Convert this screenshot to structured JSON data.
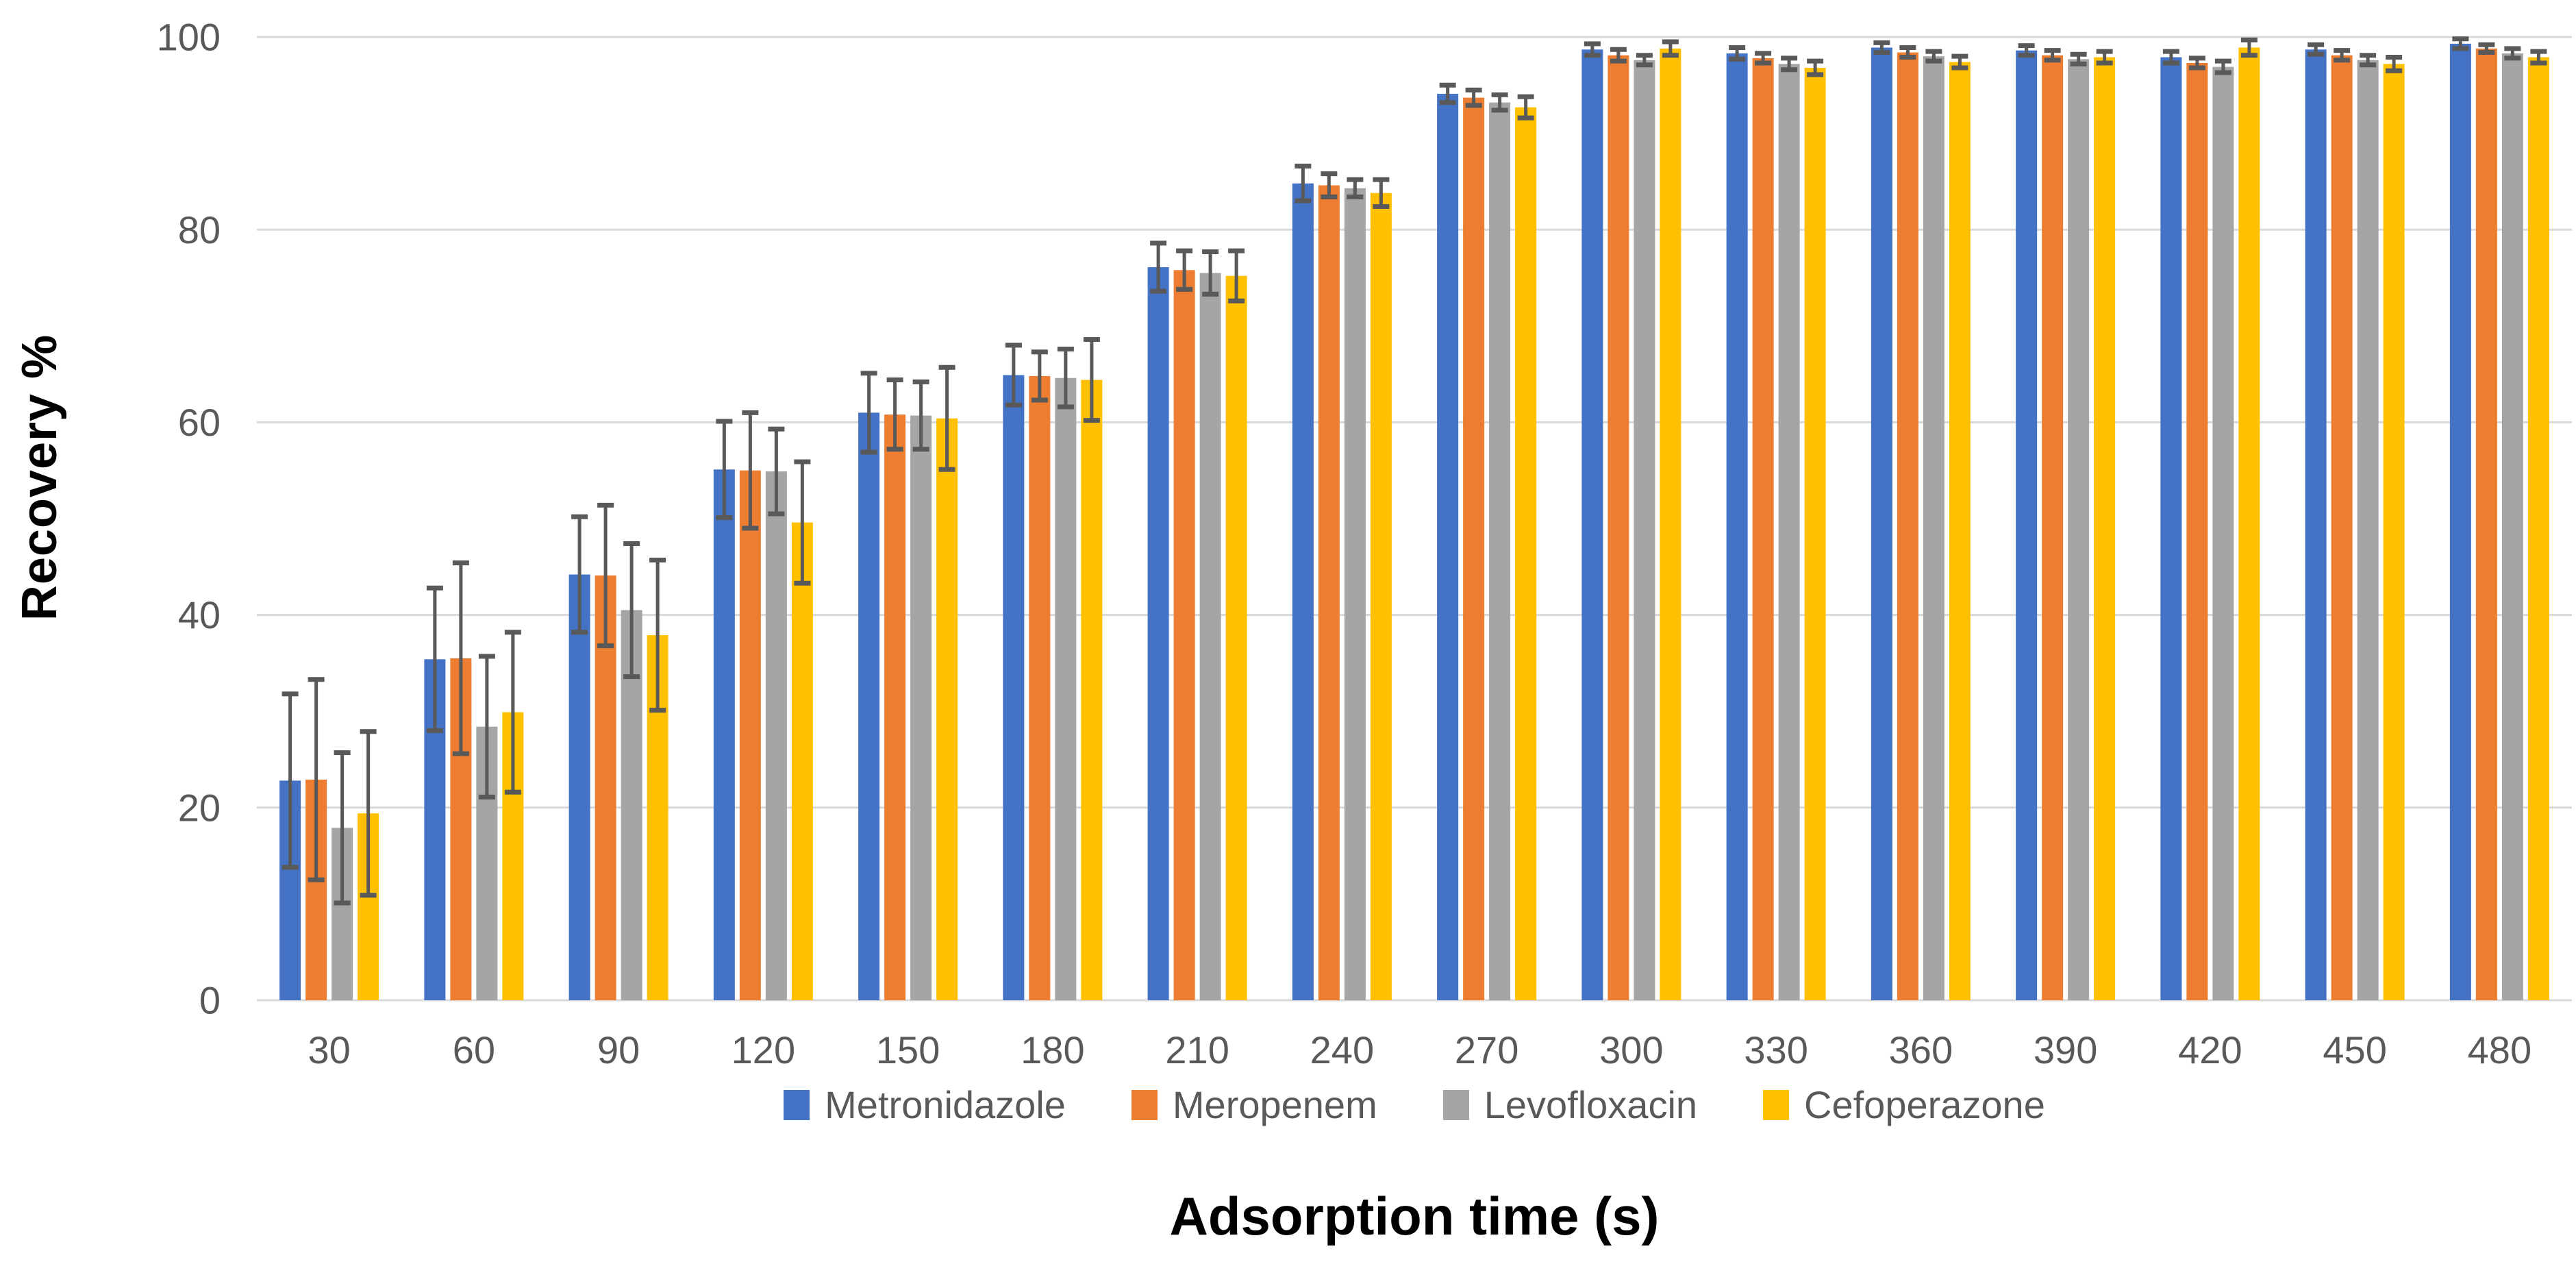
{
  "chart_data": {
    "type": "bar",
    "title": "",
    "xlabel": "Adsorption time (s)",
    "ylabel": "Recovery %",
    "categories": [
      "30",
      "60",
      "90",
      "120",
      "150",
      "180",
      "210",
      "240",
      "270",
      "300",
      "330",
      "360",
      "390",
      "420",
      "450",
      "480"
    ],
    "series": [
      {
        "name": "Metronidazole",
        "color": "#4472C4",
        "values": [
          22.8,
          35.4,
          44.2,
          55.1,
          61.0,
          64.9,
          76.1,
          84.8,
          94.1,
          98.7,
          98.3,
          98.9,
          98.6,
          97.9,
          98.7,
          99.3
        ],
        "errors": [
          9.0,
          7.4,
          6.0,
          5.0,
          4.1,
          3.1,
          2.5,
          1.8,
          0.9,
          0.6,
          0.6,
          0.5,
          0.5,
          0.6,
          0.5,
          0.5
        ]
      },
      {
        "name": "Meropenem",
        "color": "#ED7D31",
        "values": [
          22.9,
          35.5,
          44.1,
          55.0,
          60.8,
          64.8,
          75.8,
          84.6,
          93.7,
          98.1,
          97.8,
          98.4,
          98.1,
          97.3,
          98.1,
          98.8
        ],
        "errors": [
          10.4,
          9.9,
          7.3,
          6.0,
          3.6,
          2.5,
          2.0,
          1.2,
          0.8,
          0.6,
          0.5,
          0.5,
          0.5,
          0.5,
          0.5,
          0.4
        ]
      },
      {
        "name": "Levofloxacin",
        "color": "#A5A5A5",
        "values": [
          17.9,
          28.4,
          40.5,
          54.9,
          60.7,
          64.6,
          75.5,
          84.3,
          93.2,
          97.6,
          97.2,
          98.0,
          97.7,
          96.9,
          97.6,
          98.3
        ],
        "errors": [
          7.8,
          7.3,
          6.9,
          4.4,
          3.5,
          3.0,
          2.2,
          0.9,
          0.8,
          0.5,
          0.6,
          0.5,
          0.5,
          0.6,
          0.5,
          0.5
        ]
      },
      {
        "name": "Cefoperazone",
        "color": "#FFC000",
        "values": [
          19.4,
          29.9,
          37.9,
          49.6,
          60.4,
          64.4,
          75.2,
          83.8,
          92.7,
          98.8,
          96.8,
          97.4,
          97.9,
          98.9,
          97.2,
          97.9
        ],
        "errors": [
          8.5,
          8.3,
          7.8,
          6.3,
          5.3,
          4.2,
          2.6,
          1.4,
          1.1,
          0.7,
          0.7,
          0.6,
          0.6,
          0.8,
          0.7,
          0.6
        ]
      }
    ],
    "ylim": [
      0,
      100
    ],
    "yticks": [
      0,
      20,
      40,
      60,
      80,
      100
    ],
    "grid": true,
    "legend_position": "bottom",
    "gridline_color": "#D9D9D9",
    "tick_label_color": "#595959",
    "error_bar_color": "#595959",
    "axis_title_color": "#000000"
  }
}
